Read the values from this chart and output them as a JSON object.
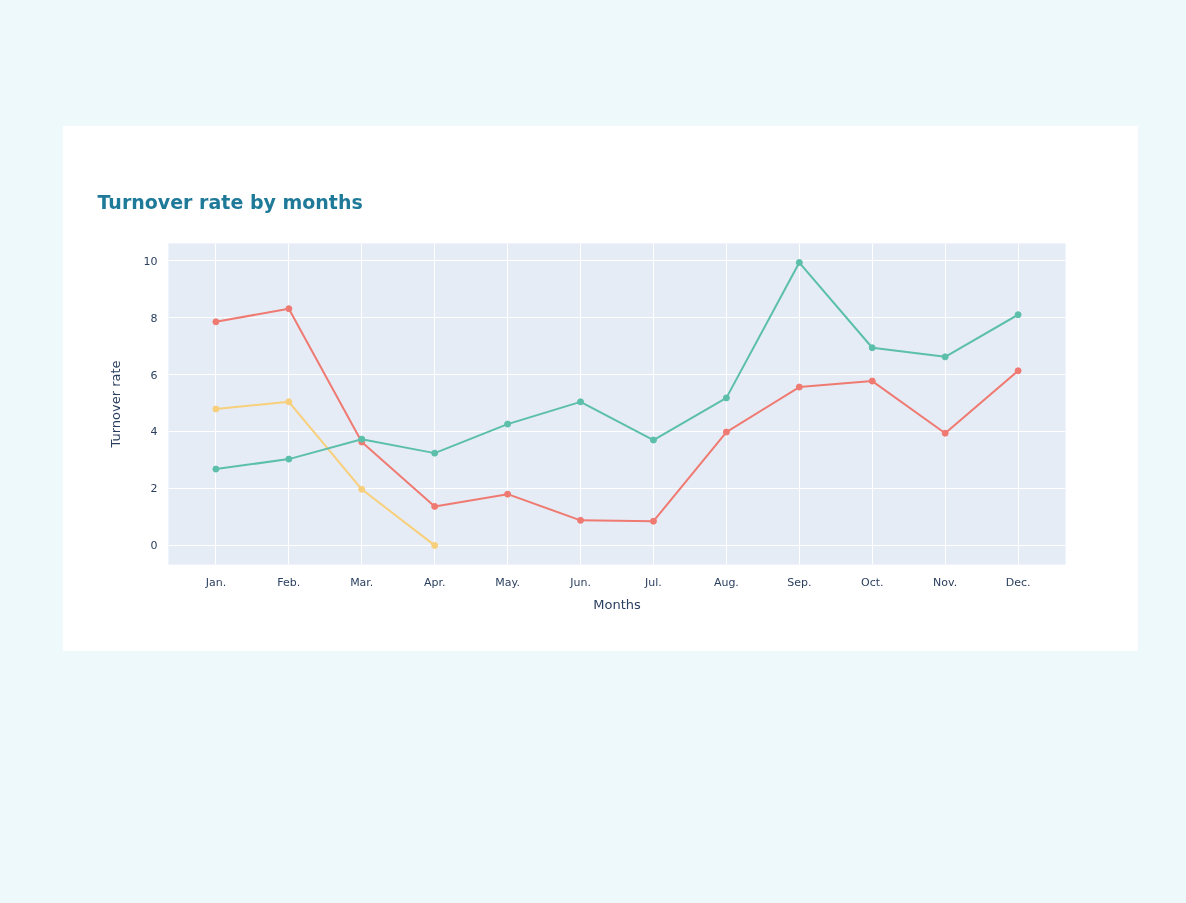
{
  "chart_data": {
    "type": "line",
    "title": "Turnover rate by months",
    "xlabel": "Months",
    "ylabel": "Turnover rate",
    "categories": [
      "Jan.",
      "Feb.",
      "Mar.",
      "Apr.",
      "May.",
      "Jun.",
      "Jul.",
      "Aug.",
      "Sep.",
      "Oct.",
      "Nov.",
      "Dec."
    ],
    "series": [
      {
        "color": "#ef7a72",
        "values": [
          7.85,
          8.31,
          3.63,
          1.37,
          1.8,
          0.88,
          0.85,
          3.98,
          5.56,
          5.77,
          3.94,
          6.13
        ]
      },
      {
        "color": "#f8cf7a",
        "values": [
          4.79,
          5.04,
          1.97,
          0,
          null,
          null,
          null,
          null,
          null,
          null,
          null,
          null
        ]
      },
      {
        "color": "#5cbfa9",
        "values": [
          2.68,
          3.03,
          3.73,
          3.24,
          4.26,
          5.04,
          3.7,
          5.18,
          9.93,
          6.94,
          6.62,
          8.1
        ]
      }
    ],
    "ylim": [
      -0.67,
      10.6
    ],
    "yticks": [
      0,
      2,
      4,
      6,
      8,
      10
    ],
    "grid": true,
    "marker": "circle",
    "line_style": "solid"
  }
}
